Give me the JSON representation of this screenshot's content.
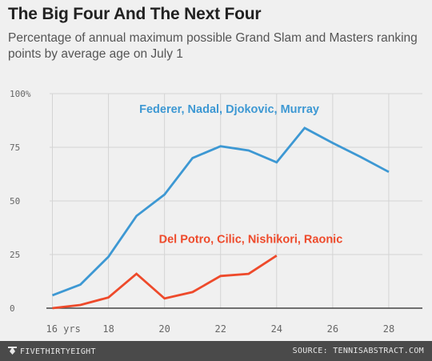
{
  "title": "The Big Four And The Next Four",
  "subtitle": "Percentage of annual maximum possible Grand Slam and Masters ranking points by average age on July 1",
  "footer": {
    "brand": "FIVETHIRTYEIGHT",
    "source": "SOURCE: TENNISABSTRACT.COM",
    "brand_icon": "fivethirtyeight-logo-icon"
  },
  "chart_data": {
    "type": "line",
    "x_tick_labels": [
      "16 yrs",
      "18",
      "20",
      "22",
      "24",
      "26",
      "28"
    ],
    "x_ticks": [
      16,
      18,
      20,
      22,
      24,
      26,
      28
    ],
    "y_tick_labels": [
      "0",
      "25",
      "50",
      "75",
      "100%"
    ],
    "y_ticks": [
      0,
      25,
      50,
      75,
      100
    ],
    "xlim": [
      15.9,
      29.2
    ],
    "ylim": [
      0,
      100
    ],
    "grid": true,
    "series": [
      {
        "name": "Federer, Nadal, Djokovic, Murray",
        "color": "#3d98d3",
        "x": [
          16,
          17,
          18,
          19,
          20,
          21,
          22,
          23,
          24,
          25,
          26,
          27,
          28
        ],
        "y": [
          6,
          11,
          24,
          43,
          53,
          70,
          75.5,
          73.5,
          68,
          84,
          77,
          70.5,
          63.5
        ]
      },
      {
        "name": "Del Potro, Cilic, Nishikori, Raonic",
        "color": "#ee4a2b",
        "x": [
          16,
          17,
          18,
          19,
          20,
          21,
          22,
          23,
          24
        ],
        "y": [
          0,
          1.5,
          5,
          16,
          4.5,
          7.5,
          15,
          16,
          24.5
        ]
      }
    ],
    "annotations": [
      {
        "text": "Federer, Nadal, Djokovic, Murray",
        "x": 19.1,
        "y": 91,
        "color": "#3d98d3"
      },
      {
        "text": "Del Potro, Cilic, Nishikori, Raonic",
        "x": 19.8,
        "y": 30.5,
        "color": "#ee4a2b"
      }
    ]
  }
}
